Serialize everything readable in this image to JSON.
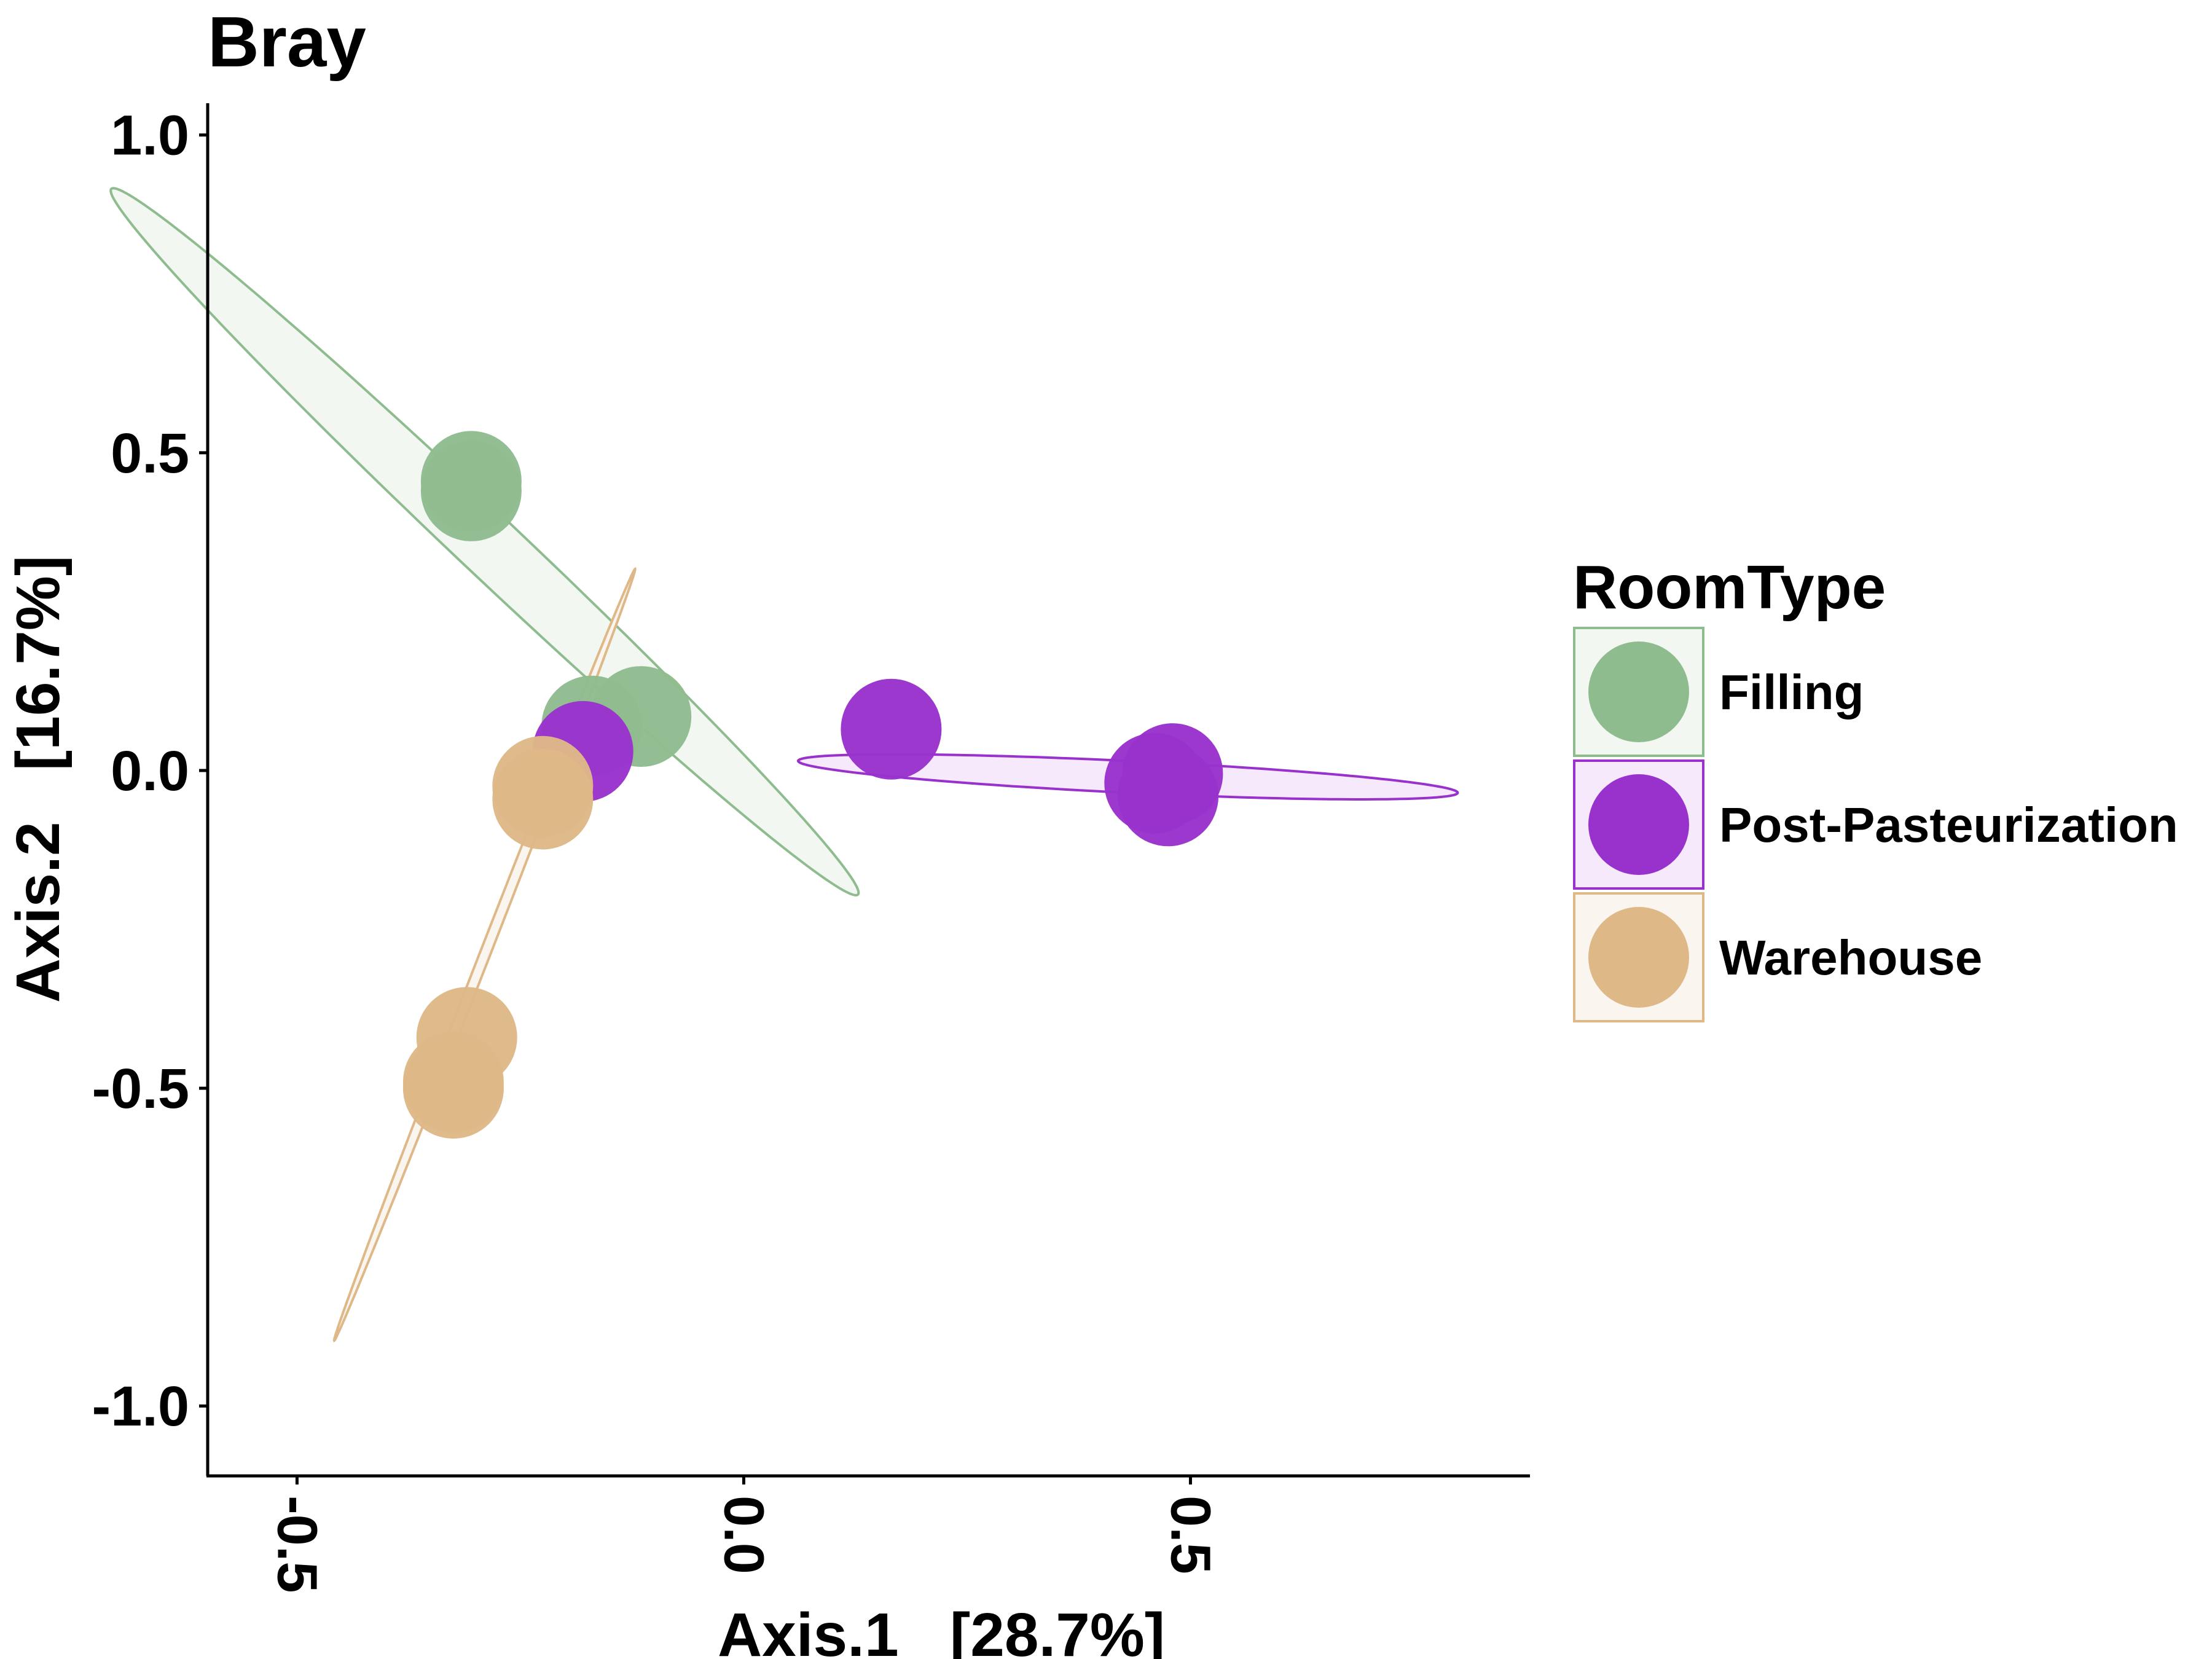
{
  "chart_data": {
    "type": "scatter",
    "title": "Bray",
    "xlabel": "Axis.1   [28.7%]",
    "ylabel": "Axis.2   [16.7%]",
    "xlim": [
      -0.6,
      0.88
    ],
    "ylim": [
      -1.11,
      1.05
    ],
    "x_ticks": [
      -0.5,
      0.0,
      0.5
    ],
    "x_tick_labels": [
      "-0.5",
      "0.0",
      "0.5"
    ],
    "y_ticks": [
      1.0,
      0.5,
      0.0,
      -0.5,
      -1.0
    ],
    "y_tick_labels": [
      "1.0",
      "0.5",
      "0.0",
      "-0.5",
      "-1.0"
    ],
    "grid": false,
    "legend": {
      "title": "RoomType",
      "position": "right"
    },
    "series": [
      {
        "name": "Filling",
        "color": "#8fbc8f",
        "fill": "#f2f7f2",
        "points": [
          [
            -0.305,
            0.455
          ],
          [
            -0.305,
            0.44
          ],
          [
            -0.115,
            0.085
          ],
          [
            -0.17,
            0.07
          ]
        ],
        "ellipse": {
          "cx": -0.29,
          "cy": 0.36,
          "rx": 0.695,
          "ry": 0.04,
          "angle_deg": -53.1
        }
      },
      {
        "name": "Post-Pasteurization",
        "color": "#9932cc",
        "fill": "#f5e9fb",
        "points": [
          [
            0.165,
            0.065
          ],
          [
            -0.18,
            0.03
          ],
          [
            0.46,
            -0.02
          ],
          [
            0.48,
            -0.005
          ],
          [
            0.475,
            -0.04
          ]
        ],
        "ellipse": {
          "cx": 0.43,
          "cy": -0.01,
          "rx": 0.37,
          "ry": 0.025,
          "angle_deg": -3.9
        }
      },
      {
        "name": "Warehouse",
        "color": "#deb887",
        "fill": "#faf5ef",
        "points": [
          [
            -0.225,
            -0.025
          ],
          [
            -0.225,
            -0.045
          ],
          [
            -0.31,
            -0.42
          ],
          [
            -0.325,
            -0.49
          ],
          [
            -0.325,
            -0.5
          ]
        ],
        "ellipse": {
          "cx": -0.29,
          "cy": -0.29,
          "rx": 0.63,
          "ry": 0.006,
          "angle_deg": 74.5
        }
      }
    ]
  }
}
